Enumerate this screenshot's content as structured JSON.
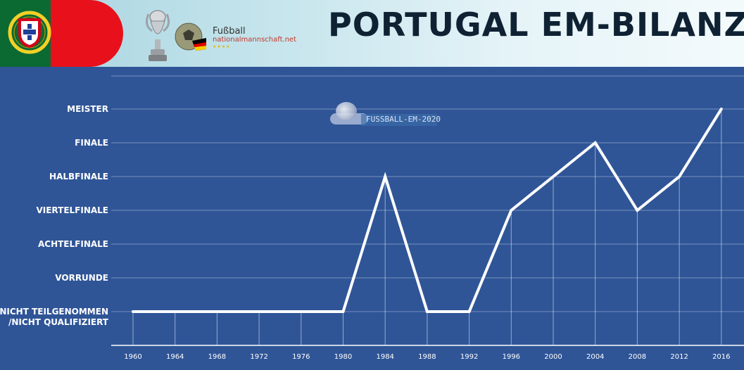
{
  "header": {
    "title": "PORTUGAL EM-BILANZ",
    "logo_line1": "Fußball",
    "logo_line2": "nationalmannschaft.net",
    "logo_line3": "★★★★"
  },
  "watermark": {
    "text": "FUSSBALL-EM-2020"
  },
  "colors": {
    "background": "#2f5597",
    "line": "#ffffff",
    "flag_green": "#0a6a32",
    "flag_red": "#e8101b",
    "title": "#0f2233"
  },
  "chart_data": {
    "type": "line",
    "title": "PORTUGAL EM-BILANZ",
    "xlabel": "",
    "ylabel": "",
    "categories": [
      "1960",
      "1964",
      "1968",
      "1972",
      "1976",
      "1980",
      "1984",
      "1988",
      "1992",
      "1996",
      "2000",
      "2004",
      "2008",
      "2012",
      "2016"
    ],
    "y_levels": [
      "NICHT TEILGENOMMEN\n/NICHT QUALIFIZIERT",
      "VORRUNDE",
      "ACHTELFINALE",
      "VIERTELFINALE",
      "HALBFINALE",
      "FINALE",
      "MEISTER"
    ],
    "values": [
      0,
      0,
      0,
      0,
      0,
      0,
      4,
      0,
      0,
      3,
      4,
      5,
      3,
      4,
      6
    ],
    "ylim": [
      0,
      6
    ],
    "grid": true,
    "legend": "none"
  }
}
